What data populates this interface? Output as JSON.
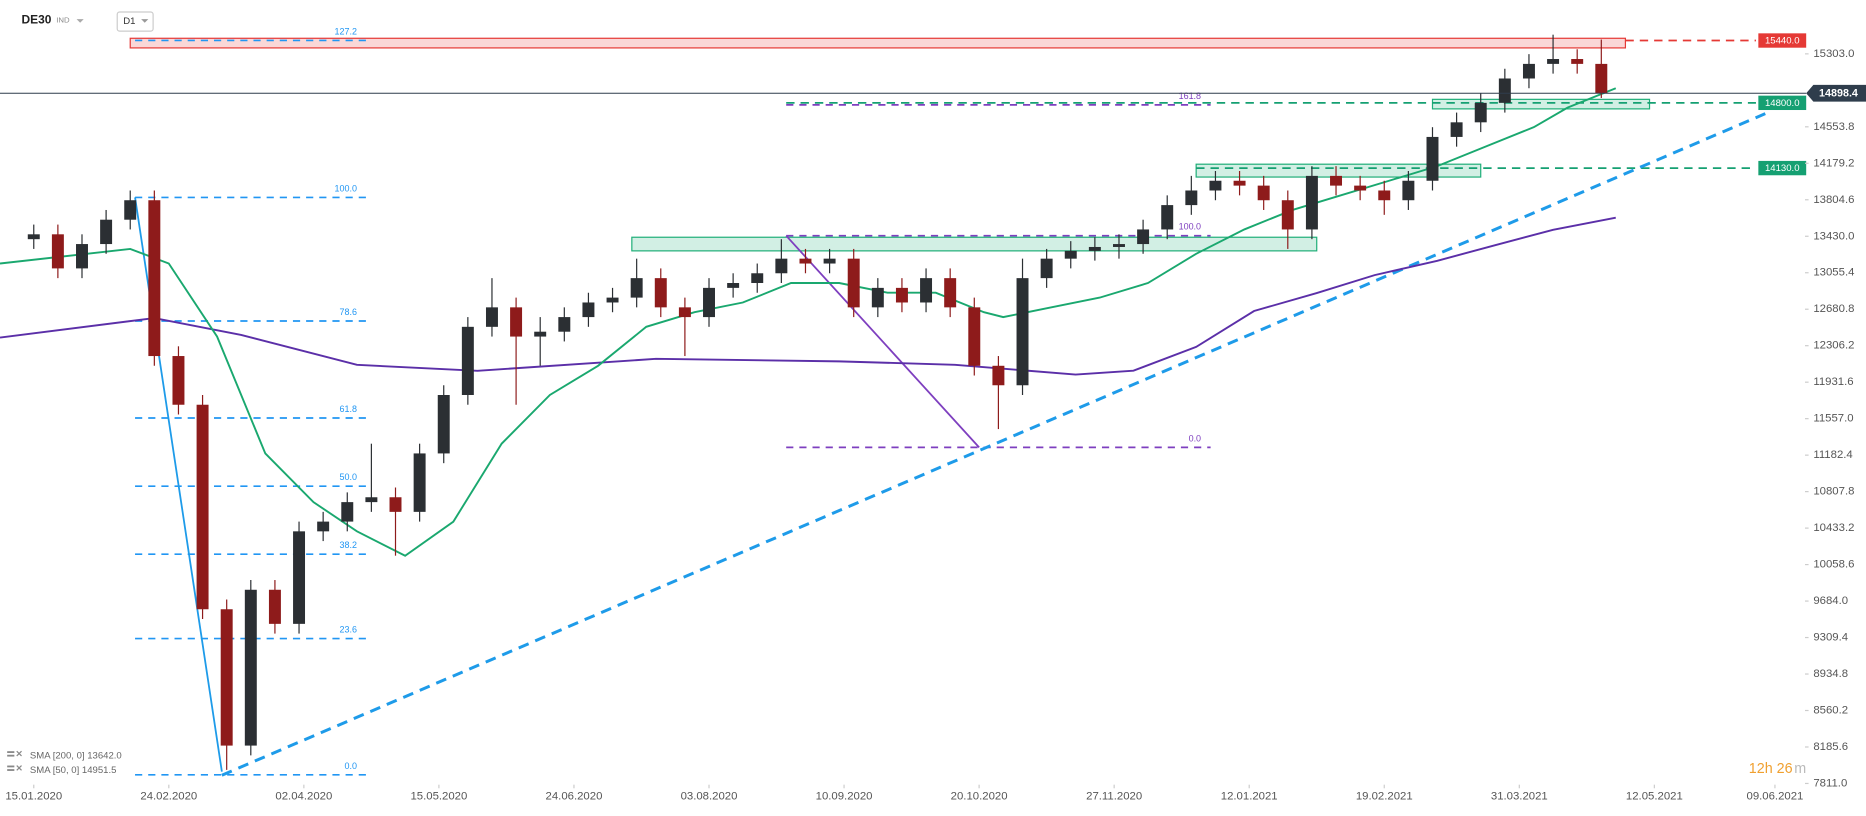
{
  "header": {
    "symbol": "DE30",
    "market": "IND",
    "interval": "D1"
  },
  "countdown": {
    "time": "12h 26",
    "unit": "m"
  },
  "chart_data": {
    "type": "candlestick",
    "up_color": "#2b2f33",
    "down_color": "#8e1b1b",
    "xlim": [
      -7,
      365
    ],
    "xticks": [
      {
        "value": 0,
        "label": "15.01.2020"
      },
      {
        "value": 28,
        "label": "24.02.2020"
      },
      {
        "value": 56,
        "label": "02.04.2020"
      },
      {
        "value": 84,
        "label": "15.05.2020"
      },
      {
        "value": 112,
        "label": "24.06.2020"
      },
      {
        "value": 140,
        "label": "03.08.2020"
      },
      {
        "value": 168,
        "label": "10.09.2020"
      },
      {
        "value": 196,
        "label": "20.10.2020"
      },
      {
        "value": 224,
        "label": "27.11.2020"
      },
      {
        "value": 252,
        "label": "12.01.2021"
      },
      {
        "value": 280,
        "label": "19.02.2021"
      },
      {
        "value": 308,
        "label": "31.03.2021"
      },
      {
        "value": 336,
        "label": "12.05.2021"
      },
      {
        "value": 361,
        "label": "09.06.2021"
      }
    ],
    "ylim": [
      7774,
      15856
    ],
    "yticks": [
      {
        "value": 7811.0,
        "label": "7811.0"
      },
      {
        "value": 8185.6,
        "label": "8185.6"
      },
      {
        "value": 8560.2,
        "label": "8560.2"
      },
      {
        "value": 8934.8,
        "label": "8934.8"
      },
      {
        "value": 9309.4,
        "label": "9309.4"
      },
      {
        "value": 9684.0,
        "label": "9684.0"
      },
      {
        "value": 10058.6,
        "label": "10058.6"
      },
      {
        "value": 10433.2,
        "label": "10433.2"
      },
      {
        "value": 10807.8,
        "label": "10807.8"
      },
      {
        "value": 11182.4,
        "label": "11182.4"
      },
      {
        "value": 11557.0,
        "label": "11557.0"
      },
      {
        "value": 11931.6,
        "label": "11931.6"
      },
      {
        "value": 12306.2,
        "label": "12306.2"
      },
      {
        "value": 12680.8,
        "label": "12680.8"
      },
      {
        "value": 13055.4,
        "label": "13055.4"
      },
      {
        "value": 13430.0,
        "label": "13430.0"
      },
      {
        "value": 13804.6,
        "label": "13804.6"
      },
      {
        "value": 14179.2,
        "label": "14179.2"
      },
      {
        "value": 14553.8,
        "label": "14553.8"
      },
      {
        "value": 15303.0,
        "label": "15303.0"
      }
    ],
    "x": [
      0,
      5,
      10,
      15,
      20,
      25,
      30,
      35,
      40,
      45,
      50,
      55,
      60,
      65,
      70,
      75,
      80,
      85,
      90,
      95,
      100,
      105,
      110,
      115,
      120,
      125,
      130,
      135,
      140,
      145,
      150,
      155,
      160,
      165,
      170,
      175,
      180,
      185,
      190,
      195,
      200,
      205,
      210,
      215,
      220,
      225,
      230,
      235,
      240,
      245,
      250,
      255,
      260,
      265,
      270,
      275,
      280,
      285,
      290,
      295,
      300,
      305,
      310,
      315,
      320,
      325
    ],
    "open": [
      13400,
      13450,
      13100,
      13350,
      13600,
      13800,
      12200,
      11700,
      9600,
      8200,
      9800,
      9450,
      10400,
      10500,
      10700,
      10750,
      10600,
      11200,
      11800,
      12500,
      12700,
      12400,
      12450,
      12600,
      12750,
      12800,
      13000,
      12700,
      12600,
      12900,
      12950,
      13050,
      13200,
      13150,
      13200,
      12700,
      12900,
      12750,
      13000,
      12700,
      12100,
      11900,
      13000,
      13200,
      13280,
      13320,
      13350,
      13500,
      13750,
      13900,
      14000,
      13950,
      13800,
      13500,
      14050,
      13950,
      13900,
      13800,
      14000,
      14450,
      14600,
      14800,
      15050,
      15200,
      15250,
      15200
    ],
    "high": [
      13550,
      13550,
      13450,
      13700,
      13900,
      13900,
      12300,
      11800,
      9700,
      9900,
      9900,
      10500,
      10600,
      10800,
      11300,
      10850,
      11300,
      11900,
      12600,
      13000,
      12800,
      12600,
      12700,
      12850,
      12900,
      13200,
      13100,
      12800,
      13000,
      13050,
      13150,
      13400,
      13300,
      13300,
      13300,
      13000,
      13000,
      13100,
      13100,
      12800,
      12200,
      13200,
      13300,
      13380,
      13420,
      13450,
      13600,
      13850,
      14050,
      14100,
      14100,
      14050,
      13900,
      14150,
      14150,
      14050,
      14000,
      14100,
      14550,
      14700,
      14900,
      15150,
      15300,
      15500,
      15350,
      15450
    ],
    "low": [
      13300,
      13000,
      13000,
      13250,
      13500,
      12100,
      11600,
      9500,
      7950,
      8100,
      9350,
      9350,
      10300,
      10400,
      10600,
      10150,
      10500,
      11100,
      11700,
      12400,
      11700,
      12100,
      12350,
      12500,
      12650,
      12700,
      12600,
      12200,
      12500,
      12800,
      12850,
      12950,
      13050,
      13050,
      12600,
      12600,
      12650,
      12650,
      12600,
      12000,
      11450,
      11800,
      12900,
      13100,
      13180,
      13200,
      13250,
      13400,
      13650,
      13800,
      13850,
      13700,
      13300,
      13400,
      13850,
      13800,
      13650,
      13700,
      13900,
      14350,
      14500,
      14700,
      14950,
      15100,
      15100,
      14850
    ],
    "close": [
      13450,
      13100,
      13350,
      13600,
      13800,
      12200,
      11700,
      9600,
      8200,
      9800,
      9450,
      10400,
      10500,
      10700,
      10750,
      10600,
      11200,
      11800,
      12500,
      12700,
      12400,
      12450,
      12600,
      12750,
      12800,
      13000,
      12700,
      12600,
      12900,
      12950,
      13050,
      13200,
      13150,
      13200,
      12700,
      12900,
      12750,
      13000,
      12700,
      12100,
      11900,
      13000,
      13200,
      13280,
      13320,
      13350,
      13500,
      13750,
      13900,
      14000,
      13950,
      13800,
      13500,
      14050,
      13950,
      13900,
      13800,
      14000,
      14450,
      14600,
      14800,
      15050,
      15200,
      15250,
      15200,
      14898.4
    ],
    "series": [
      {
        "name": "SMA [200, 0] 13642.0",
        "color": "#5b2fa8",
        "x": [
          -7,
          25,
          43,
          67,
          92,
          129,
          167,
          191,
          216,
          228,
          241,
          253,
          266,
          278,
          291,
          303,
          315,
          328
        ],
        "values": [
          12390,
          12590,
          12417,
          12110,
          12048,
          12171,
          12146,
          12110,
          12010,
          12050,
          12294,
          12662,
          12847,
          13031,
          13178,
          13338,
          13497,
          13620
        ]
      },
      {
        "name": "SMA [50, 0] 14951.5",
        "color": "#1aa86f",
        "x": [
          -7,
          20,
          28,
          38,
          48,
          58,
          67,
          77,
          87,
          97,
          107,
          117,
          127,
          137,
          147,
          157,
          167,
          177,
          187,
          197,
          201,
          211,
          221,
          231,
          241,
          251,
          261,
          271,
          281,
          291,
          301,
          311,
          318,
          328
        ],
        "values": [
          13150,
          13300,
          13150,
          12400,
          11200,
          10700,
          10400,
          10150,
          10500,
          11300,
          11800,
          12100,
          12500,
          12650,
          12750,
          12950,
          12950,
          12850,
          12850,
          12650,
          12600,
          12700,
          12800,
          12950,
          13250,
          13500,
          13700,
          13850,
          14000,
          14150,
          14350,
          14550,
          14750,
          14950
        ]
      }
    ],
    "zones": [
      {
        "low": 15364,
        "high": 15463,
        "from": 20,
        "to": 330,
        "color": "#e53935"
      },
      {
        "low": 13280,
        "high": 13420,
        "from": 124,
        "to": 266,
        "color": "#1fae78"
      },
      {
        "low": 14038,
        "high": 14170,
        "from": 241,
        "to": 300,
        "color": "#1fae78"
      },
      {
        "low": 14738,
        "high": 14836,
        "from": 290,
        "to": 335,
        "color": "#1fae78"
      }
    ],
    "fibs": [
      {
        "color": "#2196f3",
        "from": 21,
        "to": 69,
        "levels": [
          {
            "value": 15441,
            "label": "127.2"
          },
          {
            "value": 13829,
            "label": "100.0"
          },
          {
            "value": 12560,
            "label": "78.6"
          },
          {
            "value": 11564,
            "label": "61.8"
          },
          {
            "value": 10864,
            "label": "50.0"
          },
          {
            "value": 10165,
            "label": "38.2"
          },
          {
            "value": 9299,
            "label": "23.6"
          },
          {
            "value": 7900,
            "label": "0.0"
          }
        ]
      },
      {
        "color": "#7e3fbf",
        "from": 156,
        "to": 244,
        "levels": [
          {
            "value": 14779,
            "label": "161.8"
          },
          {
            "value": 13436,
            "label": "100.0"
          },
          {
            "value": 11262,
            "label": "0.0"
          }
        ]
      }
    ],
    "trendlines": [
      {
        "x": [
          39,
          359
        ],
        "y": [
          7896,
          14689
        ],
        "color": "#1e9be9",
        "dash": true
      },
      {
        "x": [
          21,
          39
        ],
        "y": [
          13829,
          7933
        ],
        "color": "#1e9be9",
        "dash": false
      },
      {
        "x": [
          156,
          196
        ],
        "y": [
          13436,
          11262
        ],
        "color": "#7e3fbf",
        "dash": false
      }
    ],
    "price_levels": [
      {
        "value": 15440.0,
        "label": "15440.0",
        "from": 330,
        "color": "#e53935"
      },
      {
        "value": 14800.0,
        "label": "14800.0",
        "from": 156,
        "color": "#15a072"
      },
      {
        "value": 14130.0,
        "label": "14130.0",
        "from": 241,
        "color": "#15a072"
      }
    ],
    "last_price": {
      "value": 14898.4,
      "label": "14898.4",
      "color": "#2f3d4c"
    }
  }
}
